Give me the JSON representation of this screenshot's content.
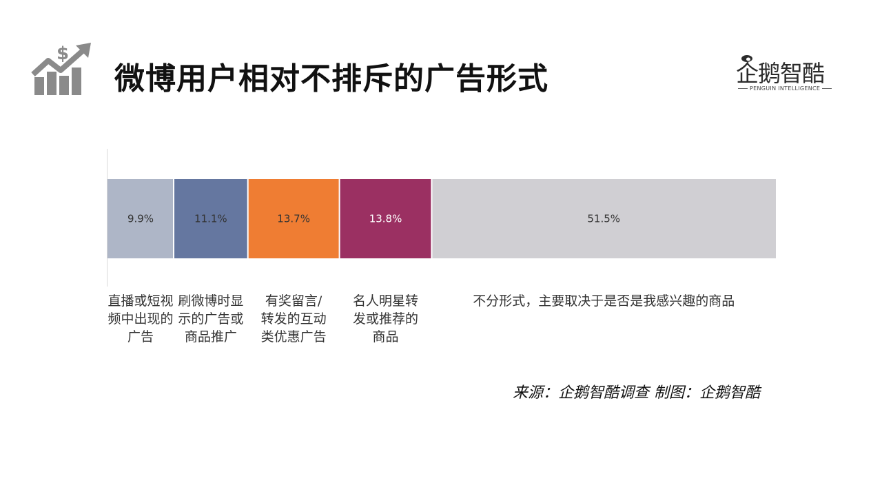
{
  "title": "微博用户相对不排斥的广告形式",
  "logo": {
    "name": "企鹅智酷",
    "subtitle": "PENGUIN INTELLIGENCE"
  },
  "icons": {
    "title_icon": "growth-chart-dollar-icon",
    "logo_icon": "penguin-icon"
  },
  "chart_data": {
    "type": "bar",
    "orientation": "horizontal-stacked-100",
    "unit": "%",
    "grid": false,
    "legend": "none",
    "xlim": [
      0,
      100
    ],
    "categories": [
      "直播或短视频中出现的广告",
      "刷微博时显示的广告或商品推广",
      "有奖留言/转发的互动类优惠广告",
      "名人明星转发或推荐的商品",
      "不分形式，主要取决于是否是我感兴趣的商品"
    ],
    "values": [
      9.9,
      11.1,
      13.7,
      13.8,
      51.5
    ],
    "data_labels": [
      "9.9%",
      "11.1%",
      "13.7%",
      "13.8%",
      "51.5%"
    ],
    "colors": [
      "#aeb6c7",
      "#6577a0",
      "#ef7d33",
      "#9b3062",
      "#d0cfd3"
    ],
    "label_colors": [
      "#333333",
      "#333333",
      "#333333",
      "#ffffff",
      "#333333"
    ]
  },
  "source": "来源：企鹅智酷调查  制图：企鹅智酷"
}
